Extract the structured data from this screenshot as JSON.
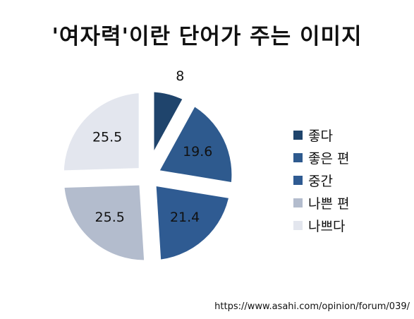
{
  "chart_data": {
    "type": "pie",
    "title": "'여자력'이란 단어가 주는 이미지",
    "categories": [
      "좋다",
      "좋은 편",
      "중간",
      "나쁜 편",
      "나쁘다"
    ],
    "values": [
      8,
      19.6,
      21.4,
      25.5,
      25.5
    ],
    "colors": [
      "#1f446c",
      "#2e5a8e",
      "#2f5b92",
      "#b3bccd",
      "#e3e6ee"
    ],
    "legend_position": "right",
    "exploded": true
  },
  "source": "https://www.asahi.com/opinion/forum/039/"
}
